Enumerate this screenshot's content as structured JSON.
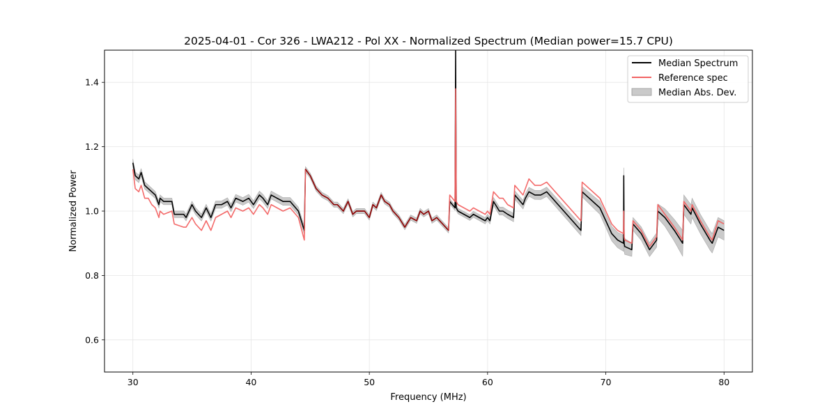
{
  "chart_data": {
    "type": "line",
    "title": "2025-04-01 - Cor 326 - LWA212 - Pol XX - Normalized Spectrum (Median power=15.7 CPU)",
    "xlabel": "Frequency (MHz)",
    "ylabel": "Normalized Power",
    "xlim": [
      27.6,
      82.4
    ],
    "ylim": [
      0.5,
      1.5
    ],
    "xticks": [
      30,
      40,
      50,
      60,
      70,
      80
    ],
    "yticks": [
      0.6,
      0.8,
      1.0,
      1.2,
      1.4
    ],
    "xtick_labels": [
      "30",
      "40",
      "50",
      "60",
      "70",
      "80"
    ],
    "ytick_labels": [
      "0.6",
      "0.8",
      "1.0",
      "1.2",
      "1.4"
    ],
    "grid": true,
    "legend_position": "top-right",
    "legend": [
      "Median Spectrum",
      "Reference spec",
      "Median Abs. Dev."
    ],
    "colors": {
      "median": "#000000",
      "reference": "#f26262",
      "mad": "#bdbdbd",
      "overlap": "#8b0000"
    },
    "series": [
      {
        "name": "Median Spectrum",
        "x": [
          30.0,
          30.2,
          30.5,
          30.7,
          31.0,
          31.3,
          31.6,
          31.9,
          32.2,
          32.3,
          32.6,
          33.3,
          33.5,
          34.3,
          34.5,
          35.0,
          35.3,
          35.8,
          36.2,
          36.6,
          37.0,
          37.5,
          38.0,
          38.3,
          38.7,
          39.3,
          39.8,
          40.2,
          40.7,
          41.0,
          41.4,
          41.7,
          42.2,
          42.7,
          43.3,
          44.0,
          44.5,
          44.6,
          45.0,
          45.5,
          46.0,
          46.5,
          47.0,
          47.3,
          47.8,
          48.2,
          48.6,
          48.9,
          49.3,
          49.6,
          50.0,
          50.3,
          50.6,
          51.0,
          51.3,
          51.7,
          52.0,
          52.5,
          53.0,
          53.5,
          54.0,
          54.3,
          54.6,
          55.0,
          55.3,
          55.7,
          56.2,
          56.7,
          56.8,
          57.25,
          57.3,
          57.35,
          57.5,
          58.0,
          58.5,
          58.8,
          59.3,
          59.8,
          60.0,
          60.2,
          60.5,
          61.0,
          61.3,
          61.7,
          62.2,
          62.3,
          63.0,
          63.2,
          63.5,
          64.0,
          64.5,
          65.0,
          67.9,
          68.0,
          69.5,
          70.5,
          71.0,
          71.5,
          71.52,
          71.55,
          71.6,
          72.2,
          72.3,
          73.0,
          73.7,
          74.3,
          74.4,
          75.0,
          75.8,
          76.5,
          76.6,
          77.2,
          77.3,
          78.0,
          78.8,
          79.0,
          79.5,
          80.0
        ],
        "y": [
          1.15,
          1.11,
          1.1,
          1.12,
          1.08,
          1.07,
          1.06,
          1.05,
          1.02,
          1.04,
          1.03,
          1.03,
          0.99,
          0.99,
          0.98,
          1.02,
          1.0,
          0.98,
          1.01,
          0.98,
          1.02,
          1.02,
          1.03,
          1.01,
          1.04,
          1.03,
          1.04,
          1.02,
          1.05,
          1.04,
          1.02,
          1.05,
          1.04,
          1.03,
          1.03,
          1.0,
          0.94,
          1.13,
          1.11,
          1.07,
          1.05,
          1.04,
          1.02,
          1.02,
          1.0,
          1.03,
          0.99,
          1.0,
          1.0,
          1.0,
          0.98,
          1.02,
          1.01,
          1.05,
          1.03,
          1.02,
          1.0,
          0.98,
          0.95,
          0.98,
          0.97,
          1.0,
          0.99,
          1.0,
          0.97,
          0.98,
          0.96,
          0.94,
          1.03,
          1.01,
          1.5,
          1.01,
          1.0,
          0.99,
          0.98,
          0.99,
          0.98,
          0.97,
          0.98,
          0.97,
          1.03,
          1.0,
          1.0,
          0.99,
          0.98,
          1.05,
          1.02,
          1.04,
          1.06,
          1.05,
          1.05,
          1.06,
          0.94,
          1.06,
          1.01,
          0.93,
          0.91,
          0.9,
          1.11,
          0.9,
          0.89,
          0.88,
          0.96,
          0.93,
          0.88,
          0.91,
          1.0,
          0.98,
          0.94,
          0.9,
          1.02,
          0.99,
          1.01,
          0.96,
          0.91,
          0.9,
          0.95,
          0.94
        ]
      },
      {
        "name": "Reference spec",
        "x": [
          30.0,
          30.2,
          30.5,
          30.7,
          31.0,
          31.3,
          31.6,
          31.9,
          32.2,
          32.3,
          32.6,
          33.3,
          33.5,
          34.3,
          34.5,
          35.0,
          35.3,
          35.8,
          36.2,
          36.6,
          37.0,
          37.5,
          38.0,
          38.3,
          38.7,
          39.3,
          39.8,
          40.2,
          40.7,
          41.0,
          41.4,
          41.7,
          42.2,
          42.7,
          43.3,
          44.0,
          44.5,
          44.6,
          45.0,
          45.5,
          46.0,
          46.5,
          47.0,
          47.3,
          47.8,
          48.2,
          48.6,
          48.9,
          49.3,
          49.6,
          50.0,
          50.3,
          50.6,
          51.0,
          51.3,
          51.7,
          52.0,
          52.5,
          53.0,
          53.5,
          54.0,
          54.3,
          54.6,
          55.0,
          55.3,
          55.7,
          56.2,
          56.7,
          56.8,
          57.25,
          57.3,
          57.35,
          57.5,
          58.0,
          58.5,
          58.8,
          59.3,
          59.8,
          60.0,
          60.2,
          60.5,
          61.0,
          61.3,
          61.7,
          62.2,
          62.3,
          63.0,
          63.2,
          63.5,
          64.0,
          64.5,
          65.0,
          67.9,
          68.0,
          69.5,
          70.5,
          71.0,
          71.5,
          71.52,
          71.55,
          71.6,
          72.2,
          72.3,
          73.0,
          73.7,
          74.3,
          74.4,
          75.0,
          75.8,
          76.5,
          76.6,
          77.2,
          77.3,
          78.0,
          78.8,
          79.0,
          79.5,
          80.0
        ],
        "y": [
          1.13,
          1.07,
          1.06,
          1.08,
          1.04,
          1.04,
          1.02,
          1.01,
          0.98,
          1.0,
          0.99,
          1.0,
          0.96,
          0.95,
          0.95,
          0.98,
          0.96,
          0.94,
          0.97,
          0.94,
          0.98,
          0.99,
          1.0,
          0.98,
          1.01,
          1.0,
          1.01,
          0.99,
          1.02,
          1.01,
          0.99,
          1.02,
          1.01,
          1.0,
          1.01,
          0.98,
          0.91,
          1.13,
          1.11,
          1.07,
          1.05,
          1.04,
          1.02,
          1.02,
          1.0,
          1.03,
          0.99,
          1.0,
          1.0,
          1.0,
          0.98,
          1.02,
          1.01,
          1.05,
          1.03,
          1.02,
          1.0,
          0.98,
          0.95,
          0.98,
          0.97,
          1.0,
          0.99,
          1.0,
          0.97,
          0.98,
          0.96,
          0.94,
          1.05,
          1.03,
          1.38,
          1.03,
          1.02,
          1.01,
          1.0,
          1.01,
          1.0,
          0.99,
          1.0,
          0.99,
          1.06,
          1.04,
          1.04,
          1.02,
          1.01,
          1.08,
          1.05,
          1.07,
          1.1,
          1.08,
          1.08,
          1.09,
          0.97,
          1.09,
          1.04,
          0.96,
          0.94,
          0.93,
          1.0,
          0.92,
          0.91,
          0.9,
          0.97,
          0.94,
          0.89,
          0.92,
          1.02,
          0.99,
          0.95,
          0.91,
          1.03,
          1.0,
          1.02,
          0.97,
          0.92,
          0.91,
          0.97,
          0.96
        ]
      },
      {
        "name": "Median Abs. Dev.",
        "type": "band",
        "x": [
          30.0,
          33.0,
          40.0,
          44.5,
          44.6,
          56.8,
          60.2,
          60.5,
          64.0,
          67.9,
          68.0,
          71.5,
          72.3,
          74.3,
          74.4,
          76.5,
          76.6,
          80.0
        ],
        "dev": [
          0.012,
          0.01,
          0.012,
          0.012,
          0.008,
          0.008,
          0.01,
          0.012,
          0.014,
          0.016,
          0.016,
          0.025,
          0.02,
          0.022,
          0.022,
          0.04,
          0.03,
          0.03
        ]
      }
    ]
  }
}
